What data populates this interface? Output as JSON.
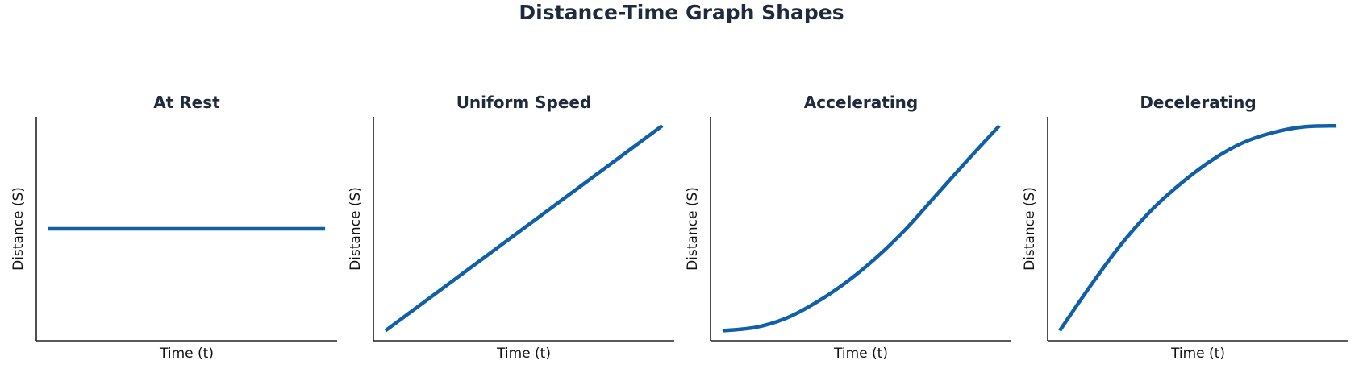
{
  "figure": {
    "title": "Distance-Time Graph Shapes",
    "line_color": "#1060a8",
    "text_color": "#1f2a3c"
  },
  "chart_data": [
    {
      "type": "line",
      "title": "At Rest",
      "xlabel": "Time (t)",
      "ylabel": "Distance (S)",
      "xlim": [
        0,
        10
      ],
      "ylim": [
        0,
        10
      ],
      "ticks": false,
      "grid": false,
      "series": [
        {
          "x": [
            0.4,
            9.6
          ],
          "y": [
            5,
            5
          ]
        }
      ]
    },
    {
      "type": "line",
      "title": "Uniform Speed",
      "xlabel": "Time (t)",
      "ylabel": "Distance (S)",
      "xlim": [
        0,
        10
      ],
      "ylim": [
        0,
        10
      ],
      "ticks": false,
      "grid": false,
      "series": [
        {
          "x": [
            0.4,
            9.6
          ],
          "y": [
            0.45,
            9.6
          ]
        }
      ]
    },
    {
      "type": "line",
      "title": "Accelerating",
      "xlabel": "Time (t)",
      "ylabel": "Distance (S)",
      "xlim": [
        0,
        10
      ],
      "ylim": [
        0,
        10
      ],
      "ticks": false,
      "grid": false,
      "series": [
        {
          "x": [
            0.4,
            1.5,
            2.5,
            3.5,
            4.5,
            5.5,
            6.5,
            7.5,
            8.5,
            9.6
          ],
          "y": [
            0.45,
            0.6,
            1.0,
            1.7,
            2.6,
            3.7,
            5.0,
            6.5,
            8.0,
            9.6
          ]
        }
      ]
    },
    {
      "type": "line",
      "title": "Decelerating",
      "xlabel": "Time (t)",
      "ylabel": "Distance (S)",
      "xlim": [
        0,
        10
      ],
      "ylim": [
        0,
        10
      ],
      "ticks": false,
      "grid": false,
      "series": [
        {
          "x": [
            0.4,
            1.5,
            2.5,
            3.5,
            4.5,
            5.5,
            6.5,
            7.5,
            8.5,
            9.6
          ],
          "y": [
            0.45,
            2.6,
            4.4,
            5.9,
            7.1,
            8.1,
            8.85,
            9.3,
            9.55,
            9.6
          ]
        }
      ]
    }
  ]
}
